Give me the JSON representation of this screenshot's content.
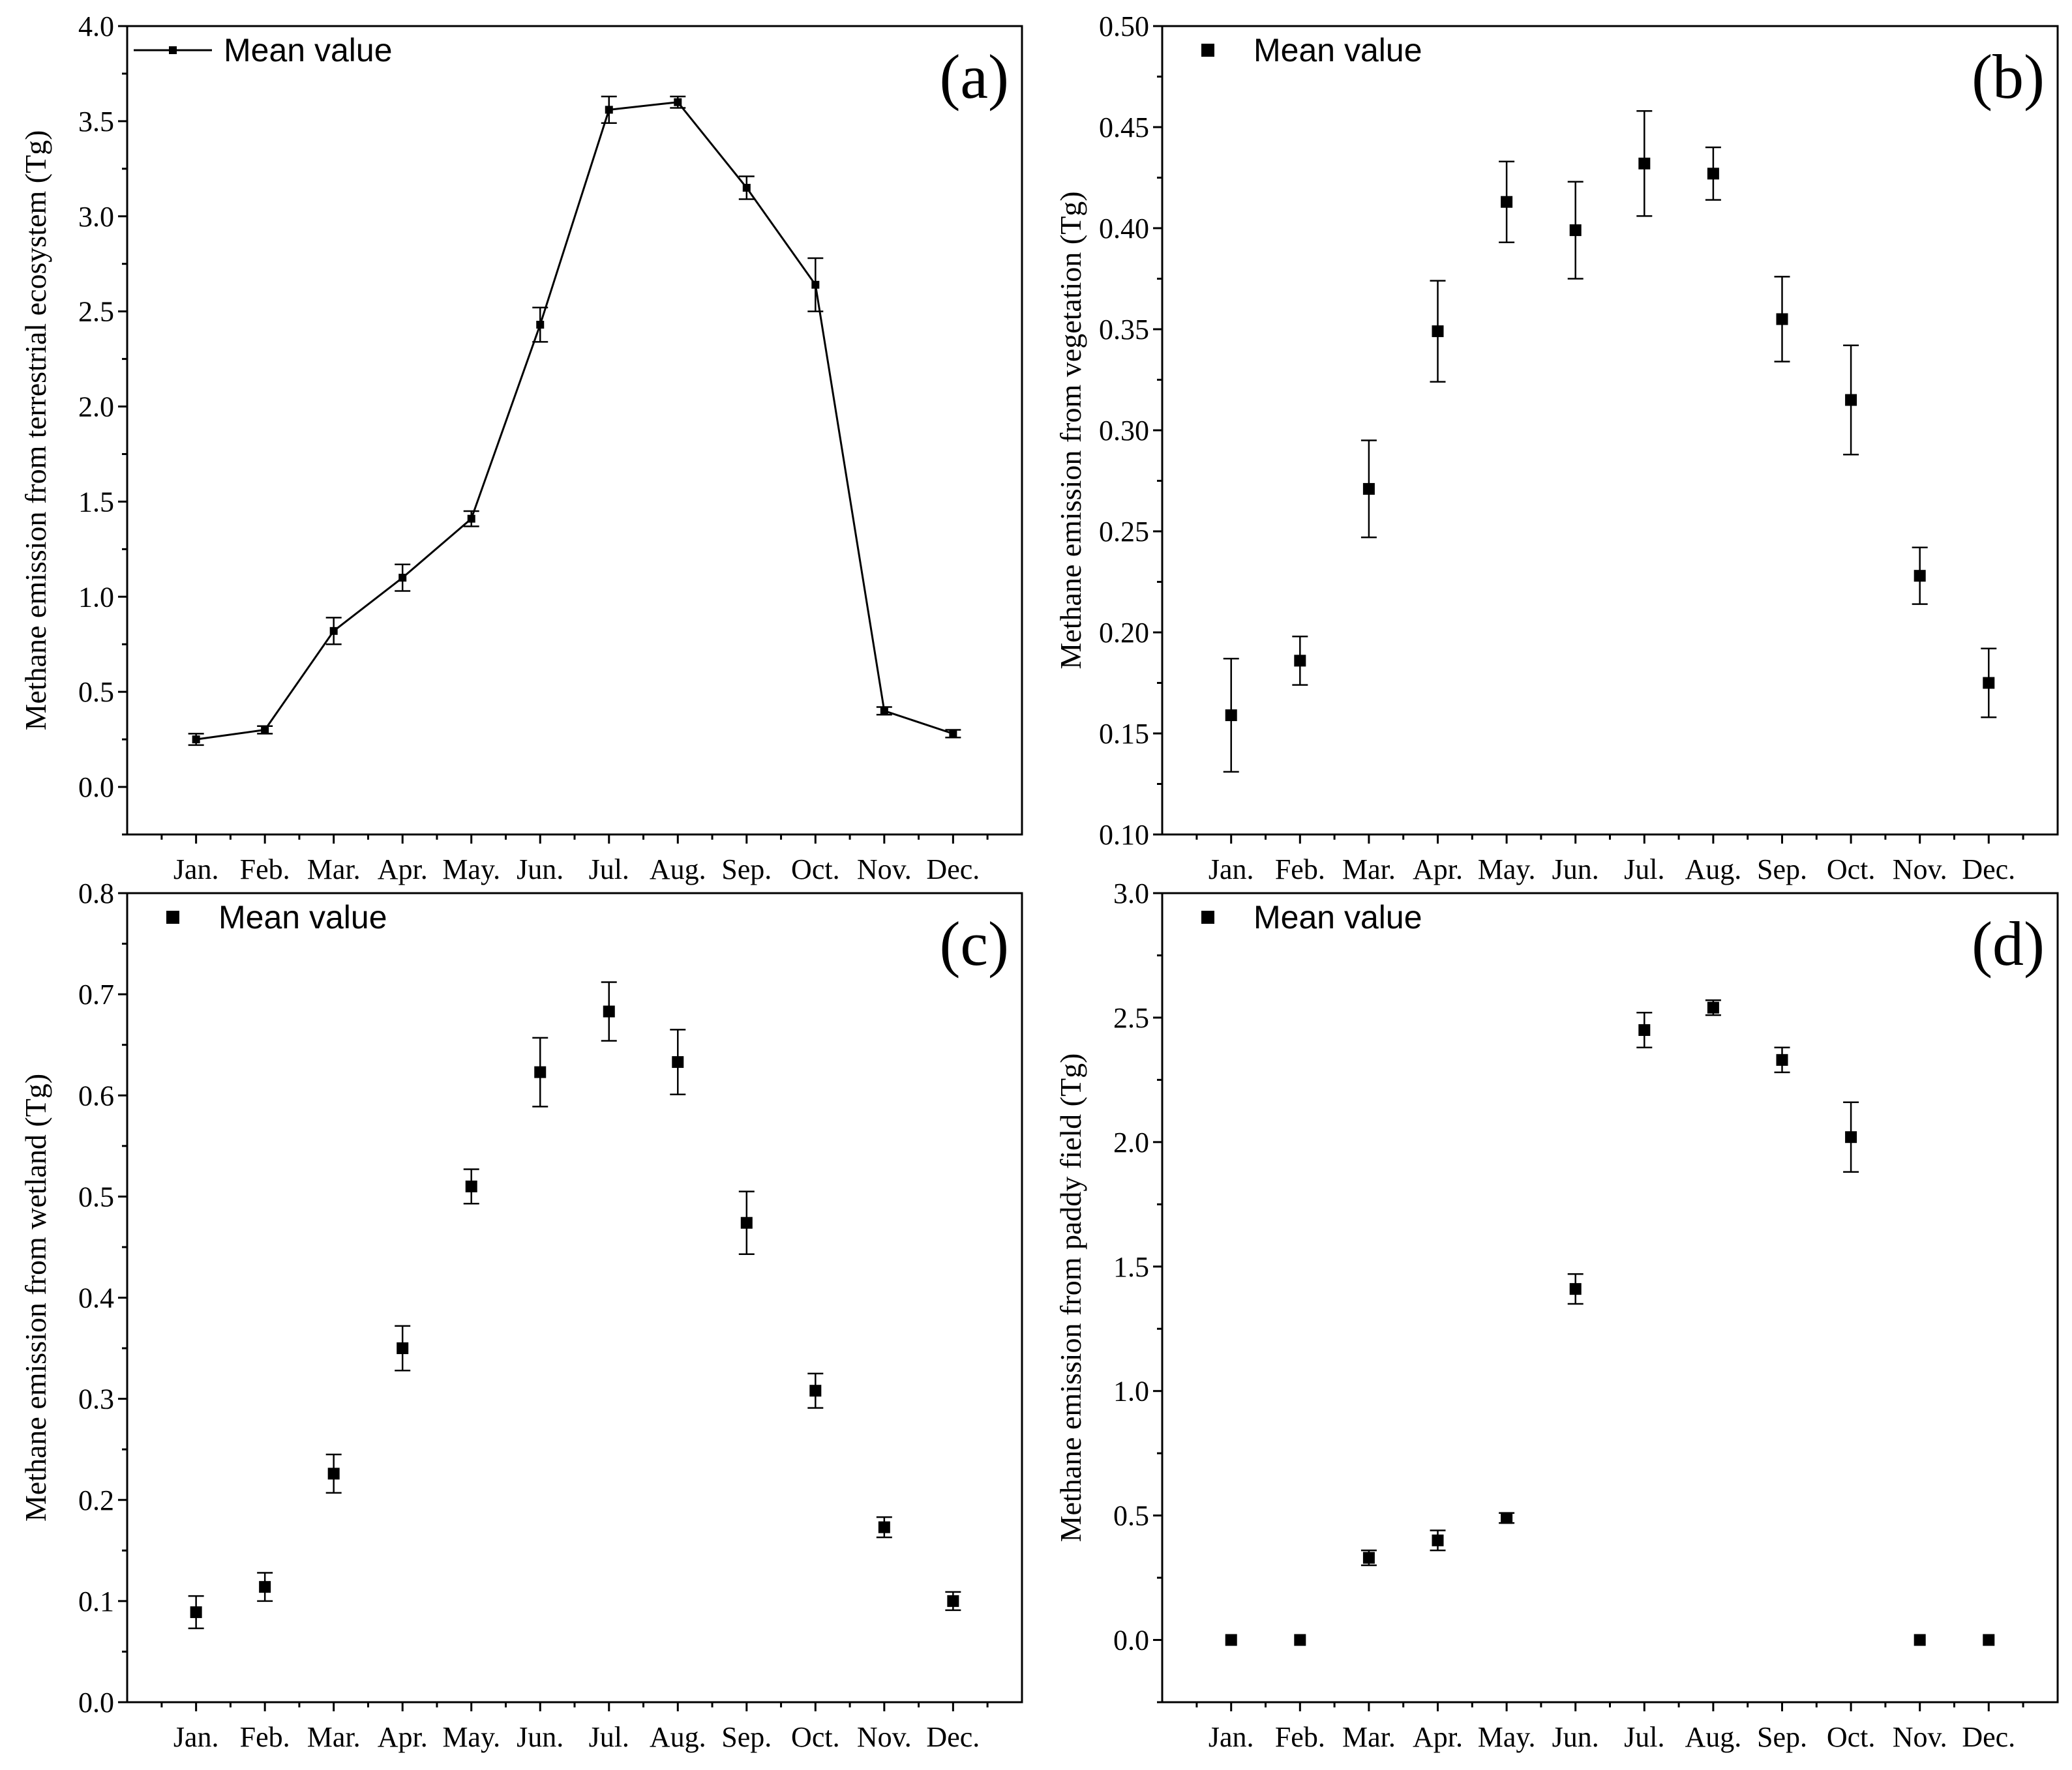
{
  "chart_data": [
    {
      "type": "line",
      "panel_label": "(a)",
      "ylabel": "Methane emission from terrestrial ecosystem (Tg)",
      "xlabel": "",
      "legend": "Mean value",
      "legend_position": "top-left",
      "ylim": [
        -0.25,
        4.0
      ],
      "y_ticks": [
        0.0,
        0.5,
        1.0,
        1.5,
        2.0,
        2.5,
        3.0,
        3.5,
        4.0
      ],
      "y_tick_labels": [
        "0.0",
        "0.5",
        "1.0",
        "1.5",
        "2.0",
        "2.5",
        "3.0",
        "3.5",
        "4.0"
      ],
      "categories": [
        "Jan.",
        "Feb.",
        "Mar.",
        "Apr.",
        "May.",
        "Jun.",
        "Jul.",
        "Aug.",
        "Sep.",
        "Oct.",
        "Nov.",
        "Dec."
      ],
      "values": [
        0.25,
        0.3,
        0.82,
        1.1,
        1.41,
        2.43,
        3.56,
        3.6,
        3.15,
        2.64,
        0.4,
        0.28
      ],
      "errors": [
        0.03,
        0.02,
        0.07,
        0.07,
        0.04,
        0.09,
        0.07,
        0.03,
        0.06,
        0.14,
        0.02,
        0.02
      ]
    },
    {
      "type": "scatter",
      "panel_label": "(b)",
      "ylabel": "Methane emission from vegetation (Tg)",
      "xlabel": "",
      "legend": "Mean value",
      "legend_position": "top-left",
      "ylim": [
        0.1,
        0.5
      ],
      "y_ticks": [
        0.1,
        0.15,
        0.2,
        0.25,
        0.3,
        0.35,
        0.4,
        0.45,
        0.5
      ],
      "y_tick_labels": [
        "0.10",
        "0.15",
        "0.20",
        "0.25",
        "0.30",
        "0.35",
        "0.40",
        "0.45",
        "0.50"
      ],
      "categories": [
        "Jan.",
        "Feb.",
        "Mar.",
        "Apr.",
        "May.",
        "Jun.",
        "Jul.",
        "Aug.",
        "Sep.",
        "Oct.",
        "Nov.",
        "Dec."
      ],
      "values": [
        0.159,
        0.186,
        0.271,
        0.349,
        0.413,
        0.399,
        0.432,
        0.427,
        0.355,
        0.315,
        0.228,
        0.175
      ],
      "errors": [
        0.028,
        0.012,
        0.024,
        0.025,
        0.02,
        0.024,
        0.026,
        0.013,
        0.021,
        0.027,
        0.014,
        0.017
      ]
    },
    {
      "type": "scatter",
      "panel_label": "(c)",
      "ylabel": "Methane emission from wetland (Tg)",
      "xlabel": "",
      "legend": "Mean value",
      "legend_position": "top-left",
      "ylim": [
        0.0,
        0.8
      ],
      "y_ticks": [
        0.0,
        0.1,
        0.2,
        0.3,
        0.4,
        0.5,
        0.6,
        0.7,
        0.8
      ],
      "y_tick_labels": [
        "0.0",
        "0.1",
        "0.2",
        "0.3",
        "0.4",
        "0.5",
        "0.6",
        "0.7",
        "0.8"
      ],
      "categories": [
        "Jan.",
        "Feb.",
        "Mar.",
        "Apr.",
        "May.",
        "Jun.",
        "Jul.",
        "Aug.",
        "Sep.",
        "Oct.",
        "Nov.",
        "Dec."
      ],
      "values": [
        0.089,
        0.114,
        0.226,
        0.35,
        0.51,
        0.623,
        0.683,
        0.633,
        0.474,
        0.308,
        0.173,
        0.1
      ],
      "errors": [
        0.016,
        0.014,
        0.019,
        0.022,
        0.017,
        0.034,
        0.029,
        0.032,
        0.031,
        0.017,
        0.01,
        0.009
      ]
    },
    {
      "type": "scatter",
      "panel_label": "(d)",
      "ylabel": "Methane emission from paddy field (Tg)",
      "xlabel": "",
      "legend": "Mean value",
      "legend_position": "top-left",
      "ylim": [
        -0.25,
        3.0
      ],
      "y_ticks": [
        0.0,
        0.5,
        1.0,
        1.5,
        2.0,
        2.5,
        3.0
      ],
      "y_tick_labels": [
        "0.0",
        "0.5",
        "1.0",
        "1.5",
        "2.0",
        "2.5",
        "3.0"
      ],
      "categories": [
        "Jan.",
        "Feb.",
        "Mar.",
        "Apr.",
        "May.",
        "Jun.",
        "Jul.",
        "Aug.",
        "Sep.",
        "Oct.",
        "Nov.",
        "Dec."
      ],
      "values": [
        0.0,
        0.0,
        0.33,
        0.4,
        0.49,
        1.41,
        2.45,
        2.54,
        2.33,
        2.02,
        0.0,
        0.0
      ],
      "errors": [
        0.0,
        0.0,
        0.03,
        0.04,
        0.02,
        0.06,
        0.07,
        0.03,
        0.05,
        0.14,
        0.0,
        0.0
      ]
    }
  ]
}
